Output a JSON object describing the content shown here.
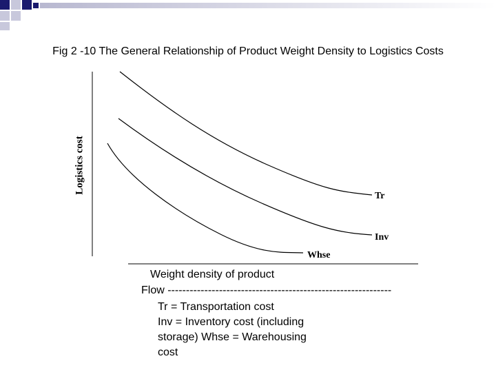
{
  "title": "Fig 2 -10 The General Relationship of Product Weight Density to Logistics Costs",
  "chart_data": {
    "type": "line",
    "ylabel": "Logistics cost",
    "xlabel": "Weight density of product",
    "series": [
      {
        "name": "Tr"
      },
      {
        "name": "Inv"
      },
      {
        "name": "Whse"
      }
    ]
  },
  "caption": {
    "line1": "Weight density of product",
    "line2": "Flow -------------------------------------------------------------",
    "line3": "Tr = Transportation cost",
    "line4": "Inv = Inventory cost (including",
    "line5": "storage) Whse = Warehousing",
    "line6": "cost"
  },
  "colors": {
    "deco_dark": "#1a1a6e",
    "deco_light": "#d8d8e8",
    "line": "#000000"
  }
}
